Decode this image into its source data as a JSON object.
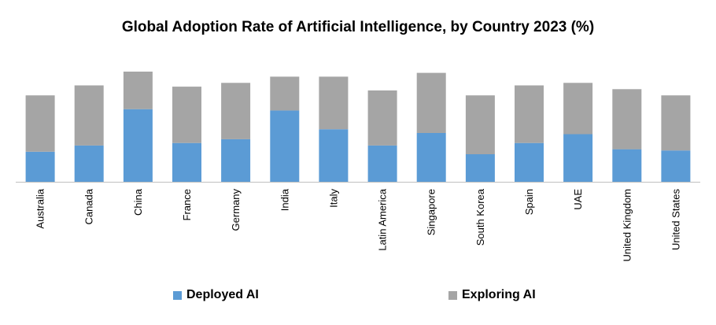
{
  "chart_data": {
    "type": "bar",
    "stacked": true,
    "title": "Global Adoption Rate of Artificial Intelligence, by Country 2023 (%)",
    "categories": [
      "Australia",
      "Canada",
      "China",
      "France",
      "Germany",
      "India",
      "Italy",
      "Latin America",
      "Singapore",
      "South Korea",
      "Spain",
      "UAE",
      "United Kingdom",
      "United States"
    ],
    "series": [
      {
        "name": "Deployed AI",
        "color": "#5B9BD5",
        "values": [
          24,
          29,
          58,
          31,
          34,
          57,
          42,
          29,
          39,
          22,
          31,
          38,
          26,
          25
        ]
      },
      {
        "name": "Exploring AI",
        "color": "#A5A5A5",
        "values": [
          45,
          48,
          30,
          45,
          45,
          27,
          42,
          44,
          48,
          47,
          46,
          41,
          48,
          44
        ]
      }
    ],
    "ylim": [
      0,
      90
    ],
    "grid": false,
    "legend_position": "bottom"
  }
}
